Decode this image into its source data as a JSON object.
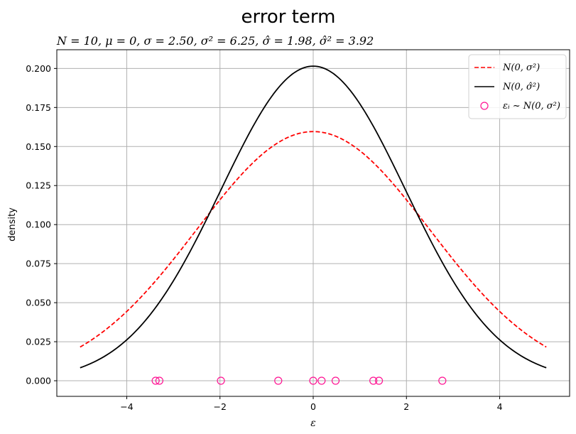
{
  "chart_data": {
    "type": "line",
    "suptitle": "error term",
    "title": "N = 10, μ = 0, σ = 2.50, σ² = 6.25, σ̂ = 1.98, σ̂² = 3.92",
    "xlabel": "ε",
    "ylabel": "density",
    "xlim": [
      -5.5,
      5.5
    ],
    "ylim": [
      -0.01,
      0.212
    ],
    "xticks": [
      -4,
      -2,
      0,
      2,
      4
    ],
    "xtick_labels": [
      "−4",
      "−2",
      "0",
      "2",
      "4"
    ],
    "yticks": [
      0.0,
      0.025,
      0.05,
      0.075,
      0.1,
      0.125,
      0.15,
      0.175,
      0.2
    ],
    "ytick_labels": [
      "0.000",
      "0.025",
      "0.050",
      "0.075",
      "0.100",
      "0.125",
      "0.150",
      "0.175",
      "0.200"
    ],
    "grid": true,
    "legend_position": "top-right",
    "series": [
      {
        "name": "N(0, σ²)",
        "kind": "line",
        "style": "dashed",
        "color": "#ff0000",
        "function": "normal_pdf",
        "mean": 0,
        "sigma": 2.5,
        "x_range": [
          -5,
          5
        ]
      },
      {
        "name": "N(0, σ̂²)",
        "kind": "line",
        "style": "solid",
        "color": "#000000",
        "function": "normal_pdf",
        "mean": 0,
        "sigma": 1.98,
        "x_range": [
          -5,
          5
        ]
      },
      {
        "name": "εᵢ ~ N(0, σ²)",
        "kind": "scatter",
        "marker": "open-circle",
        "color": "#ff1493",
        "x": [
          -3.38,
          -3.3,
          -1.98,
          -0.75,
          0.0,
          0.18,
          0.48,
          1.29,
          1.41,
          2.77
        ],
        "y": [
          0,
          0,
          0,
          0,
          0,
          0,
          0,
          0,
          0,
          0
        ]
      }
    ]
  }
}
